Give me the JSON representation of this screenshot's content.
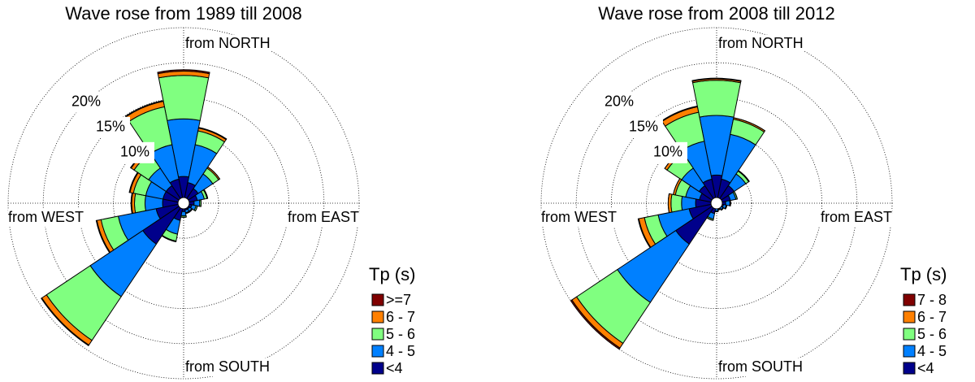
{
  "chart_data": [
    {
      "type": "rose",
      "title": "Wave rose from 1989 till 2008",
      "direction_labels": [
        "from NORTH",
        "from EAST",
        "from SOUTH",
        "from WEST"
      ],
      "rlim": [
        0,
        25
      ],
      "rticks": [
        {
          "value": 5,
          "label": null
        },
        {
          "value": 10,
          "label": "10%"
        },
        {
          "value": 15,
          "label": "15%"
        },
        {
          "value": 20,
          "label": "20%"
        }
      ],
      "legend_title": "Tp (s)",
      "series": [
        {
          "name": "<4",
          "color": "#00008b",
          "values": [
            3.8,
            3,
            2.5,
            2,
            1.5,
            1.2,
            1,
            1,
            1.2,
            2.5,
            7,
            4,
            3,
            3,
            3,
            3.5
          ]
        },
        {
          "name": "4 - 5",
          "color": "#0080ff",
          "values": [
            8.2,
            5.5,
            2.5,
            1,
            0.8,
            0.6,
            0.4,
            0.4,
            0.6,
            2,
            9,
            5.5,
            2.5,
            2.5,
            3,
            5
          ]
        },
        {
          "name": "5 - 6",
          "color": "#80ff80",
          "values": [
            6.2,
            2,
            1,
            0.4,
            0.2,
            0.2,
            0.1,
            0.1,
            0.2,
            1,
            7.5,
            2.5,
            1.5,
            1.8,
            2.5,
            5.5
          ]
        },
        {
          "name": "6 - 7",
          "color": "#ff8000",
          "values": [
            0.6,
            0.4,
            0.2,
            0.1,
            0,
            0,
            0,
            0,
            0,
            0.1,
            0.8,
            0.6,
            0.4,
            0.5,
            0.5,
            0.8
          ]
        },
        {
          "name": ">=7",
          "color": "#800000",
          "values": [
            0.2,
            0.1,
            0,
            0,
            0,
            0,
            0,
            0,
            0,
            0,
            0.1,
            0.1,
            0.1,
            0.1,
            0.1,
            0.1
          ]
        }
      ]
    },
    {
      "type": "rose",
      "title": "Wave rose from 2008 till 2012",
      "direction_labels": [
        "from NORTH",
        "from EAST",
        "from SOUTH",
        "from WEST"
      ],
      "rlim": [
        0,
        25
      ],
      "rticks": [
        {
          "value": 5,
          "label": null
        },
        {
          "value": 10,
          "label": "10%"
        },
        {
          "value": 15,
          "label": "15%"
        },
        {
          "value": 20,
          "label": "20%"
        }
      ],
      "legend_title": "Tp (s)",
      "series": [
        {
          "name": "<4",
          "color": "#00008b",
          "values": [
            4,
            3.5,
            3,
            2,
            1.3,
            1,
            0.8,
            0.7,
            0.8,
            1.5,
            7,
            4,
            3,
            2.5,
            3,
            3.5
          ]
        },
        {
          "name": "4 - 5",
          "color": "#0080ff",
          "values": [
            8.5,
            6.5,
            2,
            0.8,
            0.6,
            0.4,
            0.3,
            0.2,
            0.3,
            0.8,
            10,
            4.5,
            2,
            2,
            3,
            5.5
          ]
        },
        {
          "name": "5 - 6",
          "color": "#80ff80",
          "values": [
            5,
            2.2,
            0.5,
            0.2,
            0.1,
            0.1,
            0.1,
            0.1,
            0.1,
            0.2,
            7,
            2,
            1.5,
            1.5,
            2.5,
            4.2
          ]
        },
        {
          "name": "6 - 7",
          "color": "#ff8000",
          "values": [
            0.2,
            0.2,
            0.1,
            0,
            0,
            0,
            0,
            0,
            0,
            0,
            0.8,
            0.8,
            0.4,
            0.3,
            0.4,
            0.8
          ]
        },
        {
          "name": "7 - 8",
          "color": "#800000",
          "values": [
            0.1,
            0,
            0,
            0,
            0,
            0,
            0,
            0,
            0,
            0,
            0.2,
            0.1,
            0,
            0,
            0,
            0.1
          ]
        }
      ]
    }
  ]
}
